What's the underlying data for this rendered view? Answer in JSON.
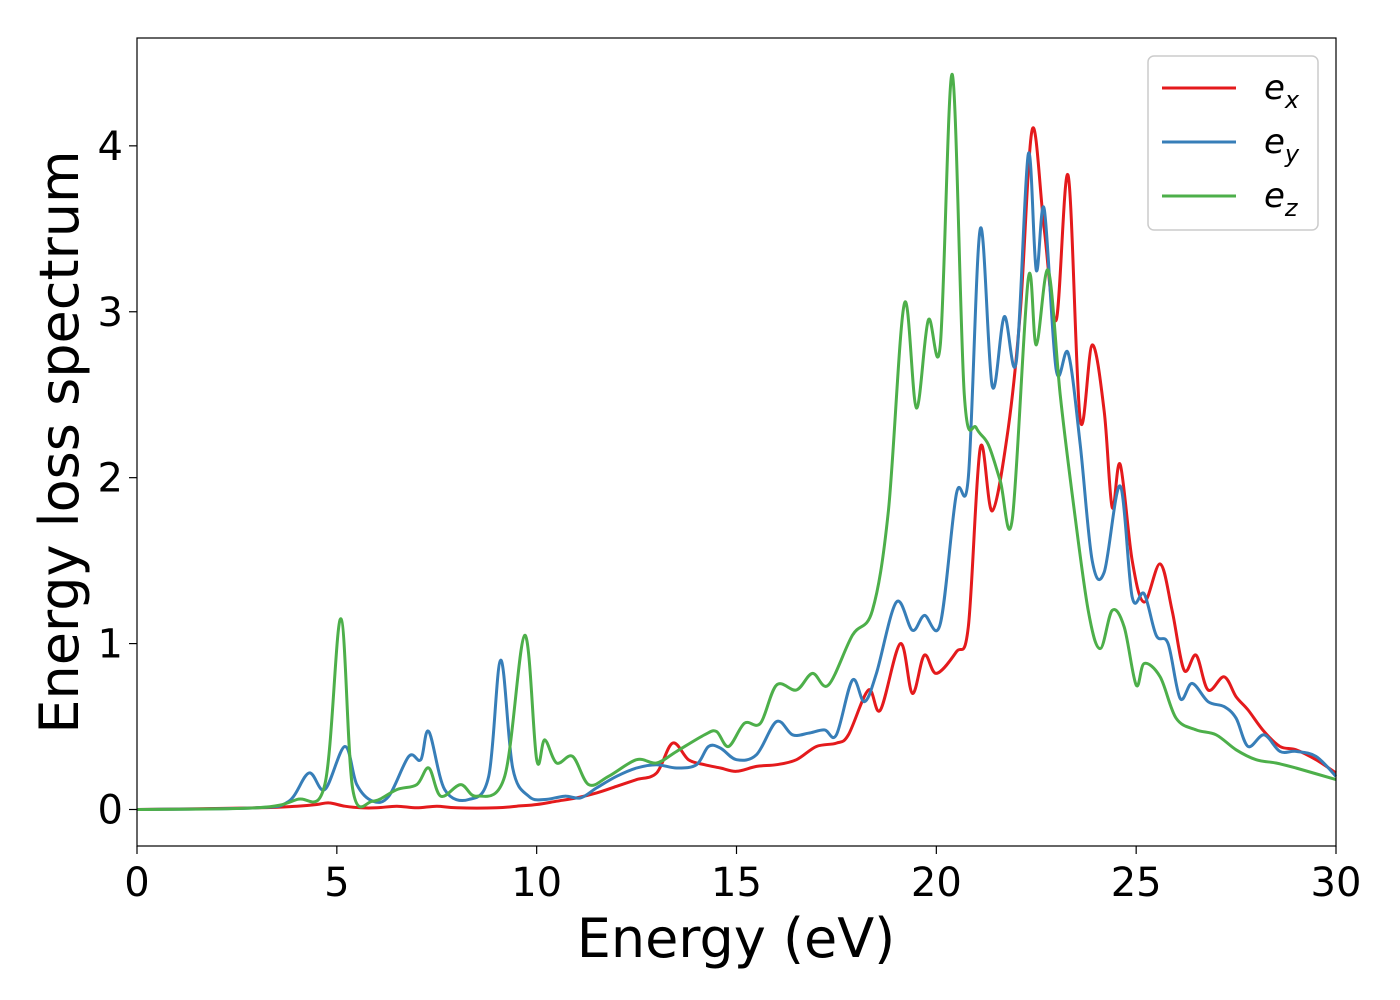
{
  "chart_data": {
    "type": "line",
    "title": "",
    "xlabel": "Energy (eV)",
    "ylabel": "Energy loss spectrum",
    "xlim": [
      0,
      30
    ],
    "ylim": [
      -0.22,
      4.65
    ],
    "xticks": [
      0,
      5,
      10,
      15,
      20,
      25,
      30
    ],
    "yticks": [
      0,
      1,
      2,
      3,
      4
    ],
    "grid": false,
    "legend_position": "top-right",
    "series": [
      {
        "name": "e_x",
        "legend_base": "e",
        "legend_sub": "x",
        "color": "#e41a1c",
        "points": [
          [
            0,
            0
          ],
          [
            3,
            0.01
          ],
          [
            4,
            0.02
          ],
          [
            4.5,
            0.03
          ],
          [
            4.8,
            0.04
          ],
          [
            5.2,
            0.02
          ],
          [
            5.6,
            0.01
          ],
          [
            6,
            0.01
          ],
          [
            6.5,
            0.02
          ],
          [
            7,
            0.01
          ],
          [
            7.5,
            0.02
          ],
          [
            8,
            0.01
          ],
          [
            9,
            0.01
          ],
          [
            9.5,
            0.02
          ],
          [
            10,
            0.03
          ],
          [
            10.5,
            0.05
          ],
          [
            11,
            0.07
          ],
          [
            11.5,
            0.1
          ],
          [
            12,
            0.14
          ],
          [
            12.5,
            0.18
          ],
          [
            13,
            0.22
          ],
          [
            13.4,
            0.4
          ],
          [
            13.8,
            0.3
          ],
          [
            14.2,
            0.27
          ],
          [
            14.6,
            0.25
          ],
          [
            15,
            0.23
          ],
          [
            15.5,
            0.26
          ],
          [
            16,
            0.27
          ],
          [
            16.5,
            0.3
          ],
          [
            17,
            0.38
          ],
          [
            17.5,
            0.4
          ],
          [
            17.8,
            0.45
          ],
          [
            18.3,
            0.72
          ],
          [
            18.6,
            0.6
          ],
          [
            19.1,
            1.0
          ],
          [
            19.4,
            0.7
          ],
          [
            19.7,
            0.93
          ],
          [
            20,
            0.82
          ],
          [
            20.5,
            0.95
          ],
          [
            20.8,
            1.1
          ],
          [
            21.1,
            2.18
          ],
          [
            21.4,
            1.8
          ],
          [
            21.8,
            2.3
          ],
          [
            22.1,
            3.0
          ],
          [
            22.4,
            4.1
          ],
          [
            22.7,
            3.5
          ],
          [
            23,
            2.95
          ],
          [
            23.3,
            3.82
          ],
          [
            23.6,
            2.35
          ],
          [
            23.9,
            2.8
          ],
          [
            24.2,
            2.4
          ],
          [
            24.4,
            1.82
          ],
          [
            24.6,
            2.08
          ],
          [
            24.9,
            1.5
          ],
          [
            25.2,
            1.25
          ],
          [
            25.6,
            1.48
          ],
          [
            25.9,
            1.2
          ],
          [
            26.2,
            0.84
          ],
          [
            26.5,
            0.93
          ],
          [
            26.8,
            0.72
          ],
          [
            27.2,
            0.8
          ],
          [
            27.5,
            0.68
          ],
          [
            27.8,
            0.6
          ],
          [
            28.2,
            0.47
          ],
          [
            28.6,
            0.38
          ],
          [
            29,
            0.36
          ],
          [
            29.5,
            0.3
          ],
          [
            30,
            0.22
          ]
        ]
      },
      {
        "name": "e_y",
        "legend_base": "e",
        "legend_sub": "y",
        "color": "#377eb8",
        "points": [
          [
            0,
            0
          ],
          [
            3,
            0.01
          ],
          [
            3.8,
            0.05
          ],
          [
            4.3,
            0.22
          ],
          [
            4.7,
            0.12
          ],
          [
            5.2,
            0.38
          ],
          [
            5.5,
            0.15
          ],
          [
            5.9,
            0.05
          ],
          [
            6.3,
            0.08
          ],
          [
            6.8,
            0.32
          ],
          [
            7.1,
            0.3
          ],
          [
            7.3,
            0.47
          ],
          [
            7.7,
            0.12
          ],
          [
            8.3,
            0.06
          ],
          [
            8.8,
            0.2
          ],
          [
            9.1,
            0.9
          ],
          [
            9.4,
            0.25
          ],
          [
            9.8,
            0.08
          ],
          [
            10.2,
            0.06
          ],
          [
            10.7,
            0.08
          ],
          [
            11.1,
            0.07
          ],
          [
            11.5,
            0.13
          ],
          [
            12,
            0.2
          ],
          [
            12.5,
            0.25
          ],
          [
            13,
            0.27
          ],
          [
            13.5,
            0.25
          ],
          [
            14,
            0.27
          ],
          [
            14.3,
            0.38
          ],
          [
            14.6,
            0.37
          ],
          [
            15,
            0.3
          ],
          [
            15.5,
            0.33
          ],
          [
            16,
            0.53
          ],
          [
            16.4,
            0.45
          ],
          [
            16.8,
            0.46
          ],
          [
            17.2,
            0.48
          ],
          [
            17.5,
            0.45
          ],
          [
            17.9,
            0.78
          ],
          [
            18.2,
            0.65
          ],
          [
            18.5,
            0.82
          ],
          [
            19,
            1.25
          ],
          [
            19.4,
            1.08
          ],
          [
            19.7,
            1.17
          ],
          [
            20.1,
            1.12
          ],
          [
            20.5,
            1.9
          ],
          [
            20.8,
            2.0
          ],
          [
            21.1,
            3.5
          ],
          [
            21.4,
            2.55
          ],
          [
            21.7,
            2.97
          ],
          [
            22,
            2.7
          ],
          [
            22.3,
            3.95
          ],
          [
            22.5,
            3.25
          ],
          [
            22.7,
            3.62
          ],
          [
            23,
            2.65
          ],
          [
            23.3,
            2.75
          ],
          [
            23.6,
            2.2
          ],
          [
            23.9,
            1.5
          ],
          [
            24.2,
            1.43
          ],
          [
            24.6,
            1.95
          ],
          [
            24.9,
            1.28
          ],
          [
            25.2,
            1.3
          ],
          [
            25.5,
            1.05
          ],
          [
            25.8,
            1.0
          ],
          [
            26.1,
            0.67
          ],
          [
            26.4,
            0.76
          ],
          [
            26.8,
            0.65
          ],
          [
            27.2,
            0.62
          ],
          [
            27.5,
            0.55
          ],
          [
            27.8,
            0.38
          ],
          [
            28.2,
            0.45
          ],
          [
            28.6,
            0.35
          ],
          [
            29,
            0.35
          ],
          [
            29.5,
            0.32
          ],
          [
            30,
            0.2
          ]
        ]
      },
      {
        "name": "e_z",
        "legend_base": "e",
        "legend_sub": "z",
        "color": "#4daf4a",
        "points": [
          [
            0,
            0
          ],
          [
            3,
            0.01
          ],
          [
            4,
            0.06
          ],
          [
            4.7,
            0.15
          ],
          [
            5.1,
            1.15
          ],
          [
            5.4,
            0.12
          ],
          [
            5.9,
            0.05
          ],
          [
            6.5,
            0.12
          ],
          [
            7,
            0.15
          ],
          [
            7.3,
            0.25
          ],
          [
            7.6,
            0.08
          ],
          [
            8.1,
            0.15
          ],
          [
            8.5,
            0.08
          ],
          [
            9.2,
            0.2
          ],
          [
            9.7,
            1.05
          ],
          [
            10,
            0.3
          ],
          [
            10.2,
            0.42
          ],
          [
            10.5,
            0.28
          ],
          [
            10.9,
            0.32
          ],
          [
            11.3,
            0.15
          ],
          [
            11.8,
            0.2
          ],
          [
            12.5,
            0.3
          ],
          [
            13,
            0.28
          ],
          [
            13.5,
            0.35
          ],
          [
            14.2,
            0.45
          ],
          [
            14.5,
            0.47
          ],
          [
            14.8,
            0.38
          ],
          [
            15.2,
            0.52
          ],
          [
            15.6,
            0.52
          ],
          [
            16,
            0.75
          ],
          [
            16.5,
            0.72
          ],
          [
            16.9,
            0.82
          ],
          [
            17.3,
            0.75
          ],
          [
            17.9,
            1.05
          ],
          [
            18.4,
            1.2
          ],
          [
            18.8,
            1.8
          ],
          [
            19.2,
            3.05
          ],
          [
            19.5,
            2.42
          ],
          [
            19.8,
            2.95
          ],
          [
            20.1,
            2.8
          ],
          [
            20.4,
            4.43
          ],
          [
            20.7,
            2.5
          ],
          [
            21,
            2.3
          ],
          [
            21.3,
            2.2
          ],
          [
            21.6,
            1.98
          ],
          [
            21.9,
            1.75
          ],
          [
            22.3,
            3.2
          ],
          [
            22.5,
            2.8
          ],
          [
            22.8,
            3.25
          ],
          [
            23.1,
            2.5
          ],
          [
            23.4,
            1.9
          ],
          [
            23.8,
            1.2
          ],
          [
            24.1,
            0.97
          ],
          [
            24.4,
            1.2
          ],
          [
            24.7,
            1.1
          ],
          [
            25,
            0.75
          ],
          [
            25.2,
            0.88
          ],
          [
            25.6,
            0.8
          ],
          [
            26,
            0.55
          ],
          [
            26.5,
            0.48
          ],
          [
            27,
            0.45
          ],
          [
            27.5,
            0.36
          ],
          [
            28,
            0.3
          ],
          [
            28.5,
            0.28
          ],
          [
            29,
            0.25
          ],
          [
            30,
            0.18
          ]
        ]
      }
    ]
  }
}
